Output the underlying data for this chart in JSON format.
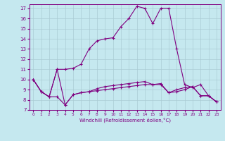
{
  "xlabel": "Windchill (Refroidissement éolien,°C)",
  "background_color": "#c5e8ef",
  "line_color": "#800080",
  "grid_color": "#aaccd4",
  "xlim": [
    -0.5,
    23.5
  ],
  "ylim": [
    7,
    17.4
  ],
  "yticks": [
    7,
    8,
    9,
    10,
    11,
    12,
    13,
    14,
    15,
    16,
    17
  ],
  "xticks": [
    0,
    1,
    2,
    3,
    4,
    5,
    6,
    7,
    8,
    9,
    10,
    11,
    12,
    13,
    14,
    15,
    16,
    17,
    18,
    19,
    20,
    21,
    22,
    23
  ],
  "line1_x": [
    0,
    1,
    2,
    3,
    4,
    5,
    6,
    7,
    8,
    9,
    10,
    11,
    12,
    13,
    14,
    15,
    16,
    17,
    18,
    19,
    20,
    21,
    22,
    23
  ],
  "line1_y": [
    10.0,
    8.8,
    8.3,
    8.3,
    7.5,
    8.5,
    8.7,
    8.8,
    8.9,
    9.0,
    9.1,
    9.2,
    9.3,
    9.4,
    9.5,
    9.5,
    9.5,
    8.7,
    8.8,
    9.0,
    9.3,
    8.4,
    8.4,
    7.8
  ],
  "line2_x": [
    0,
    1,
    2,
    3,
    4,
    5,
    6,
    7,
    8,
    9,
    10,
    11,
    12,
    13,
    14,
    15,
    16,
    17,
    18,
    19,
    20,
    21,
    22,
    23
  ],
  "line2_y": [
    10.0,
    8.8,
    8.3,
    11.0,
    11.0,
    11.1,
    11.5,
    13.0,
    13.8,
    14.0,
    14.1,
    15.2,
    16.0,
    17.2,
    17.0,
    15.5,
    17.0,
    17.0,
    13.0,
    9.5,
    9.2,
    9.5,
    8.4,
    7.8
  ],
  "line3_x": [
    0,
    1,
    2,
    3,
    4,
    5,
    6,
    7,
    8,
    9,
    10,
    11,
    12,
    13,
    14,
    15,
    16,
    17,
    18,
    19,
    20,
    21,
    22,
    23
  ],
  "line3_y": [
    10.0,
    8.8,
    8.3,
    11.0,
    7.5,
    8.5,
    8.7,
    8.8,
    9.1,
    9.3,
    9.4,
    9.5,
    9.6,
    9.7,
    9.8,
    9.5,
    9.6,
    8.7,
    9.0,
    9.2,
    9.3,
    8.4,
    8.4,
    7.8
  ]
}
